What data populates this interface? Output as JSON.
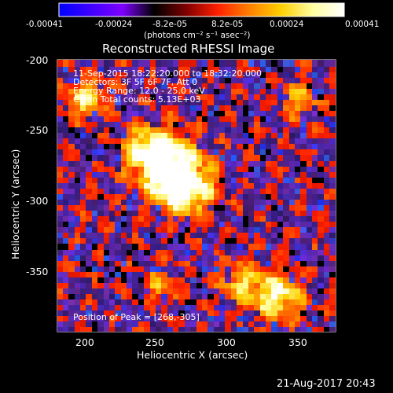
{
  "colorbar": {
    "tick_labels": [
      "-0.00041",
      "-0.00024",
      "-8.2e-05",
      "8.2e-05",
      "0.00024",
      "0.00041"
    ],
    "units_label": "(photons cm⁻² s⁻¹ asec⁻²)",
    "min": -0.00041,
    "max": 0.00041,
    "colormap": [
      "#0000ff",
      "#4000ff",
      "#7f00ff",
      "#000000",
      "#7f0000",
      "#ff2000",
      "#ff8000",
      "#ffd000",
      "#ffffa0",
      "#ffffff"
    ]
  },
  "image": {
    "title": "Reconstructed RHESSI Image",
    "info_lines": [
      "11-Sep-2015 18:22:20.000 to 18:32:20.000",
      "Detectors: 3F 5F 6F 7F, Att 0",
      "Energy Range: 12.0 - 25.0 keV",
      "Clean     Total counts: 5.13E+03"
    ],
    "peak_label": "Position of Peak = [268,-305]",
    "x_axis": {
      "label": "Heliocentric X (arcsec)",
      "range": [
        180,
        372
      ],
      "ticks": [
        200,
        250,
        300,
        350
      ]
    },
    "y_axis": {
      "label": "Heliocentric Y (arcsec)",
      "range": [
        -392,
        -196
      ],
      "ticks": [
        -200,
        -250,
        -300,
        -350
      ]
    },
    "sources": [
      {
        "x": 255,
        "y": -275,
        "amp": 1.0,
        "w": 14
      },
      {
        "x": 266,
        "y": -290,
        "amp": 0.95,
        "w": 12
      },
      {
        "x": 242,
        "y": -262,
        "amp": 0.8,
        "w": 10
      },
      {
        "x": 330,
        "y": -368,
        "amp": 0.8,
        "w": 11
      },
      {
        "x": 305,
        "y": -358,
        "amp": 0.55,
        "w": 9
      },
      {
        "x": 198,
        "y": -225,
        "amp": 0.6,
        "w": 9
      },
      {
        "x": 345,
        "y": -226,
        "amp": 0.45,
        "w": 8
      },
      {
        "x": 250,
        "y": -360,
        "amp": 0.35,
        "w": 8
      }
    ],
    "background_tint": "#6a2fd0"
  },
  "timestamp": "21-Aug-2017 20:43"
}
